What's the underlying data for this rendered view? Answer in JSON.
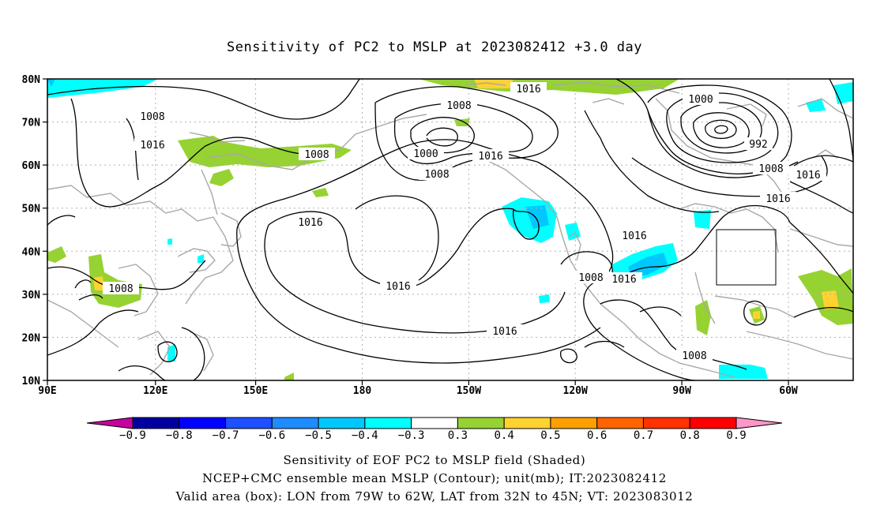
{
  "title": "Sensitivity of PC2 to MSLP at 2023082412 +3.0 day",
  "lat_labels": [
    "80N",
    "70N",
    "60N",
    "50N",
    "40N",
    "30N",
    "20N",
    "10N"
  ],
  "lon_labels": [
    "90E",
    "120E",
    "150E",
    "180",
    "150W",
    "120W",
    "90W",
    "60W"
  ],
  "contour_labels": [
    {
      "text": "1008"
    },
    {
      "text": "1016"
    },
    {
      "text": "1008"
    },
    {
      "text": "1016"
    },
    {
      "text": "1008"
    },
    {
      "text": "1008"
    },
    {
      "text": "1000"
    },
    {
      "text": "1008"
    },
    {
      "text": "1016"
    },
    {
      "text": "1016"
    },
    {
      "text": "1000"
    },
    {
      "text": "992"
    },
    {
      "text": "1008"
    },
    {
      "text": "1016"
    },
    {
      "text": "1016"
    },
    {
      "text": "1016"
    },
    {
      "text": "1016"
    },
    {
      "text": "1016"
    },
    {
      "text": "1008"
    },
    {
      "text": "1016"
    },
    {
      "text": "1008"
    }
  ],
  "colorbar": {
    "labels": [
      "−0.9",
      "−0.8",
      "−0.7",
      "−0.6",
      "−0.5",
      "−0.4",
      "−0.3",
      "0.3",
      "0.4",
      "0.5",
      "0.6",
      "0.7",
      "0.8",
      "0.9"
    ],
    "colors": [
      "#0000a0",
      "#0000ff",
      "#1e50ff",
      "#1e8cff",
      "#00c8ff",
      "#00ffff",
      "#ffffff",
      "#96d232",
      "#ffd232",
      "#ffa000",
      "#ff6400",
      "#ff3200",
      "#ff0000"
    ],
    "low_color": "#c800a0",
    "high_color": "#ff96c8"
  },
  "captions": [
    "Sensitivity of EOF PC2 to MSLP field (Shaded)",
    "NCEP+CMC ensemble mean MSLP (Contour); unit(mb); IT:2023082412",
    "Valid area (box): LON from 79W to 62W, LAT from 32N to 45N; VT: 2023083012"
  ]
}
